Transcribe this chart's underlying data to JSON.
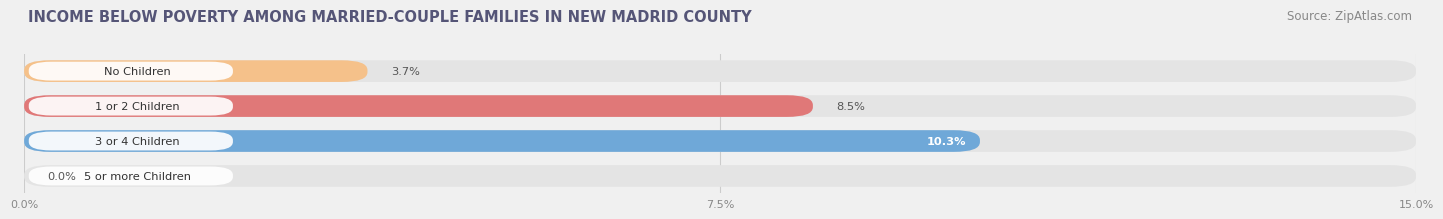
{
  "title": "INCOME BELOW POVERTY AMONG MARRIED-COUPLE FAMILIES IN NEW MADRID COUNTY",
  "source": "Source: ZipAtlas.com",
  "categories": [
    "No Children",
    "1 or 2 Children",
    "3 or 4 Children",
    "5 or more Children"
  ],
  "values": [
    3.7,
    8.5,
    10.3,
    0.0
  ],
  "bar_colors": [
    "#f5c18a",
    "#e07878",
    "#6fa8d8",
    "#c9b8d8"
  ],
  "xlim": [
    0,
    15.0
  ],
  "xticks": [
    0.0,
    7.5,
    15.0
  ],
  "xtick_labels": [
    "0.0%",
    "7.5%",
    "15.0%"
  ],
  "bg_color": "#f0f0f0",
  "bar_bg_color": "#e4e4e4",
  "title_fontsize": 10.5,
  "source_fontsize": 8.5,
  "bar_height": 0.62,
  "value_labels": [
    "3.7%",
    "8.5%",
    "10.3%",
    "0.0%"
  ],
  "value_label_inside": [
    false,
    false,
    true,
    false
  ],
  "label_box_color": "#ffffff",
  "label_text_color": "#444444",
  "bar_gap": 0.38
}
